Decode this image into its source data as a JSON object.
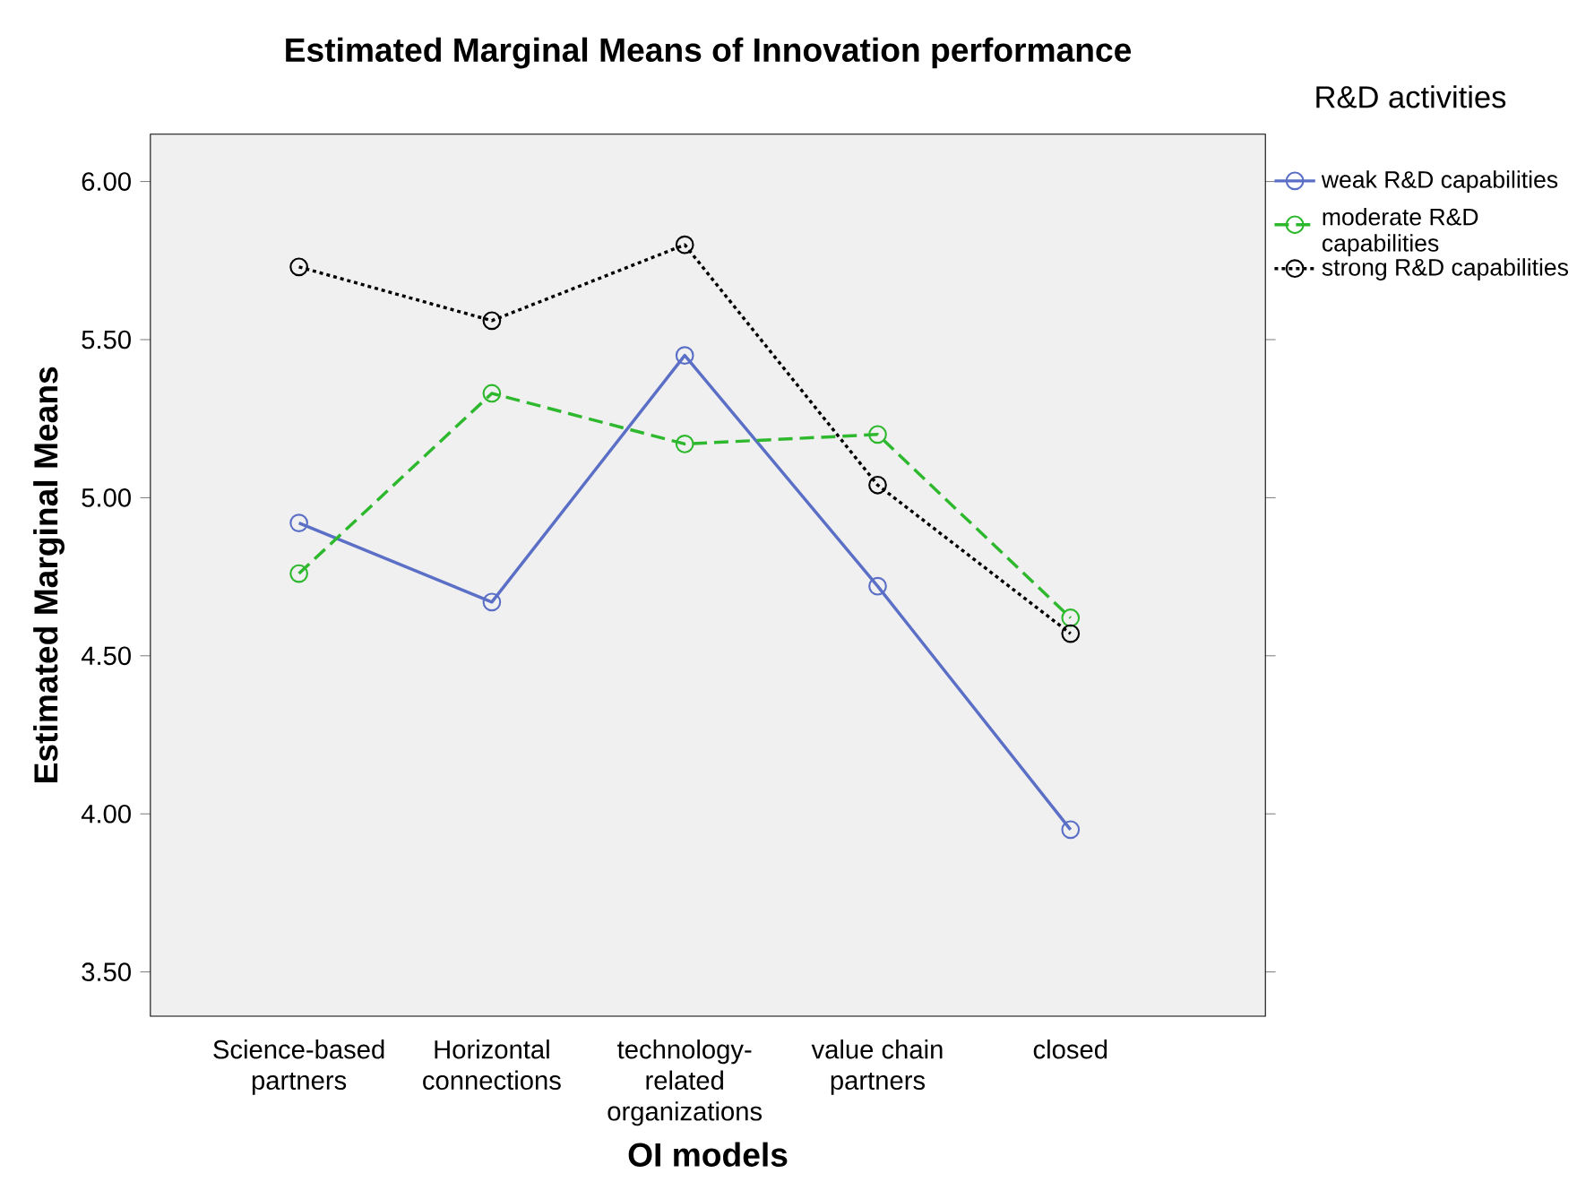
{
  "chart_data": {
    "type": "line",
    "title": "Estimated Marginal Means of Innovation performance",
    "xlabel": "OI models",
    "ylabel": "Estimated Marginal Means",
    "legend_title": "R&D activities",
    "categories": [
      "Science-based partners",
      "Horizontal connections",
      "technology-related organizations",
      "value chain partners",
      "closed"
    ],
    "series": [
      {
        "name": "weak R&D capabilities",
        "color": "#5b6fc6",
        "line_style": "solid",
        "values": [
          4.92,
          4.67,
          5.45,
          4.72,
          3.95
        ]
      },
      {
        "name": "moderate R&D capabilities",
        "color": "#2db82d",
        "line_style": "dashed",
        "values": [
          4.76,
          5.33,
          5.17,
          5.2,
          4.62
        ]
      },
      {
        "name": "strong R&D capabilities",
        "color": "#000000",
        "line_style": "dotted",
        "values": [
          5.73,
          5.56,
          5.8,
          5.04,
          4.57
        ]
      }
    ],
    "ylim": [
      3.36,
      6.15
    ],
    "yticks": [
      {
        "value": 3.5,
        "label": "3.50"
      },
      {
        "value": 4.0,
        "label": "4.00"
      },
      {
        "value": 4.5,
        "label": "4.50"
      },
      {
        "value": 5.0,
        "label": "5.00"
      },
      {
        "value": 5.5,
        "label": "5.50"
      },
      {
        "value": 6.0,
        "label": "6.00"
      }
    ],
    "marker": "circle",
    "grid": false,
    "legend": "right"
  }
}
